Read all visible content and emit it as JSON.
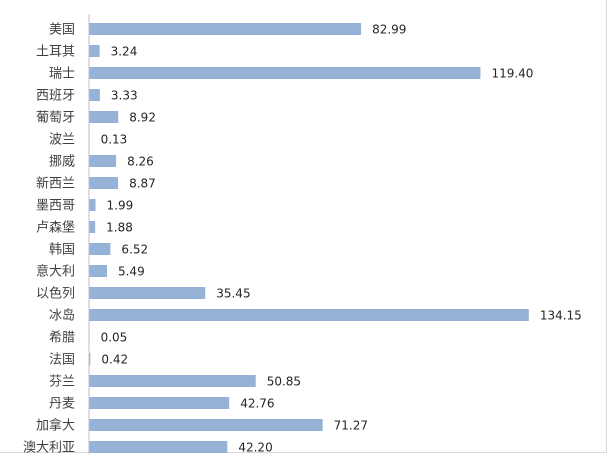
{
  "chart_data": {
    "type": "bar",
    "orientation": "horizontal",
    "categories": [
      "美国",
      "土耳其",
      "瑞士",
      "西班牙",
      "葡萄牙",
      "波兰",
      "挪威",
      "新西兰",
      "墨西哥",
      "卢森堡",
      "韩国",
      "意大利",
      "以色列",
      "冰岛",
      "希腊",
      "法国",
      "芬兰",
      "丹麦",
      "加拿大",
      "澳大利亚"
    ],
    "values": [
      82.99,
      3.24,
      119.4,
      3.33,
      8.92,
      0.13,
      8.26,
      8.87,
      1.99,
      1.88,
      6.52,
      5.49,
      35.45,
      134.15,
      0.05,
      0.42,
      50.85,
      42.76,
      71.27,
      42.2
    ],
    "value_labels": [
      "82.99",
      "3.24",
      "119.40",
      "3.33",
      "8.92",
      "0.13",
      "8.26",
      "8.87",
      "1.99",
      "1.88",
      "6.52",
      "5.49",
      "35.45",
      "134.15",
      "0.05",
      "0.42",
      "50.85",
      "42.76",
      "71.27",
      "42.20"
    ],
    "title": "",
    "xlabel": "",
    "ylabel": "",
    "xlim": [
      0,
      140
    ],
    "grid": false,
    "legend": "none",
    "bar_color": "#95b3d7",
    "axis_color": "#bfbfbf"
  }
}
